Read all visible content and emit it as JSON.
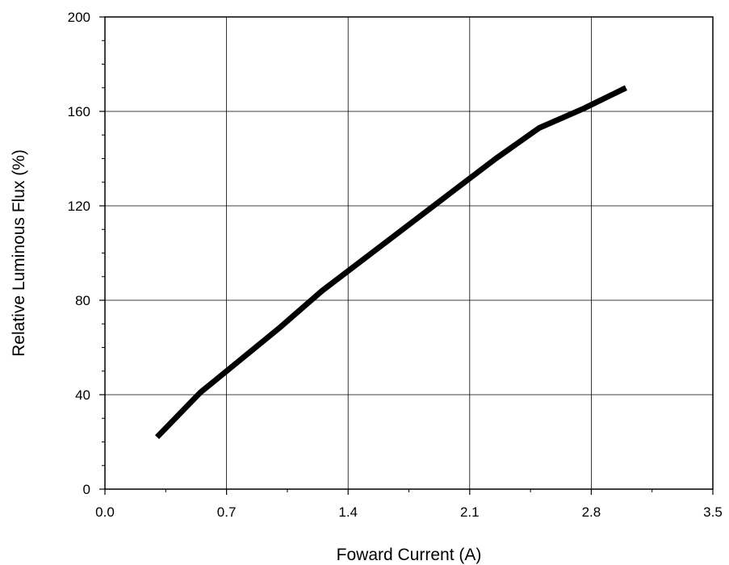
{
  "chart_data": {
    "type": "line",
    "title": "",
    "xlabel": "Foward Current (A)",
    "ylabel": "Relative Luminous Flux (%)",
    "xlim": [
      0.0,
      3.5
    ],
    "ylim": [
      0,
      200
    ],
    "x_ticks": [
      "0.0",
      "0.7",
      "1.4",
      "2.1",
      "2.8",
      "3.5"
    ],
    "y_ticks": [
      "0",
      "40",
      "80",
      "120",
      "160",
      "200"
    ],
    "grid": true,
    "series": [
      {
        "color": "#000000",
        "x": [
          0.3,
          0.55,
          0.7,
          1.0,
          1.25,
          1.5,
          1.75,
          2.0,
          2.25,
          2.5,
          2.75,
          3.0
        ],
        "y": [
          22,
          41,
          50,
          68,
          84,
          98,
          112,
          126,
          140,
          153,
          161,
          170
        ]
      }
    ]
  }
}
